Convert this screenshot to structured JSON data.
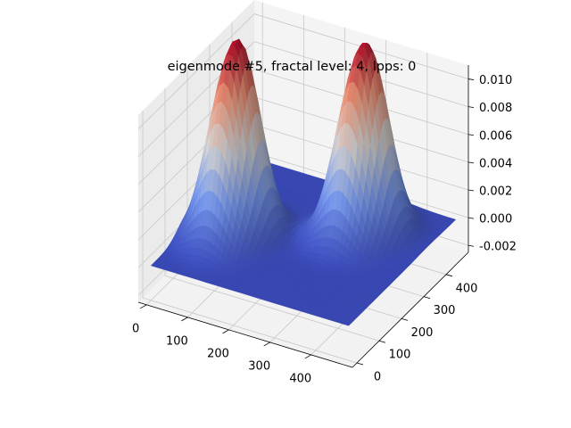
{
  "chart_data": {
    "type": "surface3d",
    "title": "eigenmode #5, fractal level: 4, lpps: 0",
    "colormap": "coolwarm",
    "colors": {
      "low": "#3b4cc0",
      "mid": "#dddddd",
      "high": "#b40426",
      "pane": "#f2f2f2",
      "grid": "#c8c8c8"
    },
    "x_ticks": [
      "0",
      "100",
      "200",
      "300",
      "400"
    ],
    "y_ticks": [
      "0",
      "100",
      "200",
      "300",
      "400"
    ],
    "z_ticks": [
      "-0.002",
      "0.000",
      "0.002",
      "0.004",
      "0.006",
      "0.008",
      "0.010"
    ],
    "xlim": [
      -20,
      500
    ],
    "ylim": [
      -20,
      500
    ],
    "zlim": [
      -0.0025,
      0.011
    ],
    "surface_domain": [
      0,
      480
    ],
    "peaks": [
      {
        "x": 105,
        "y": 225,
        "height": 0.0107
      },
      {
        "x": 85,
        "y": 160,
        "height": 0.0085
      },
      {
        "x": 345,
        "y": 360,
        "height": 0.0102
      },
      {
        "x": 320,
        "y": 300,
        "height": 0.0082
      }
    ],
    "peak_width": 42,
    "baseline": 0.0,
    "grid": true
  }
}
